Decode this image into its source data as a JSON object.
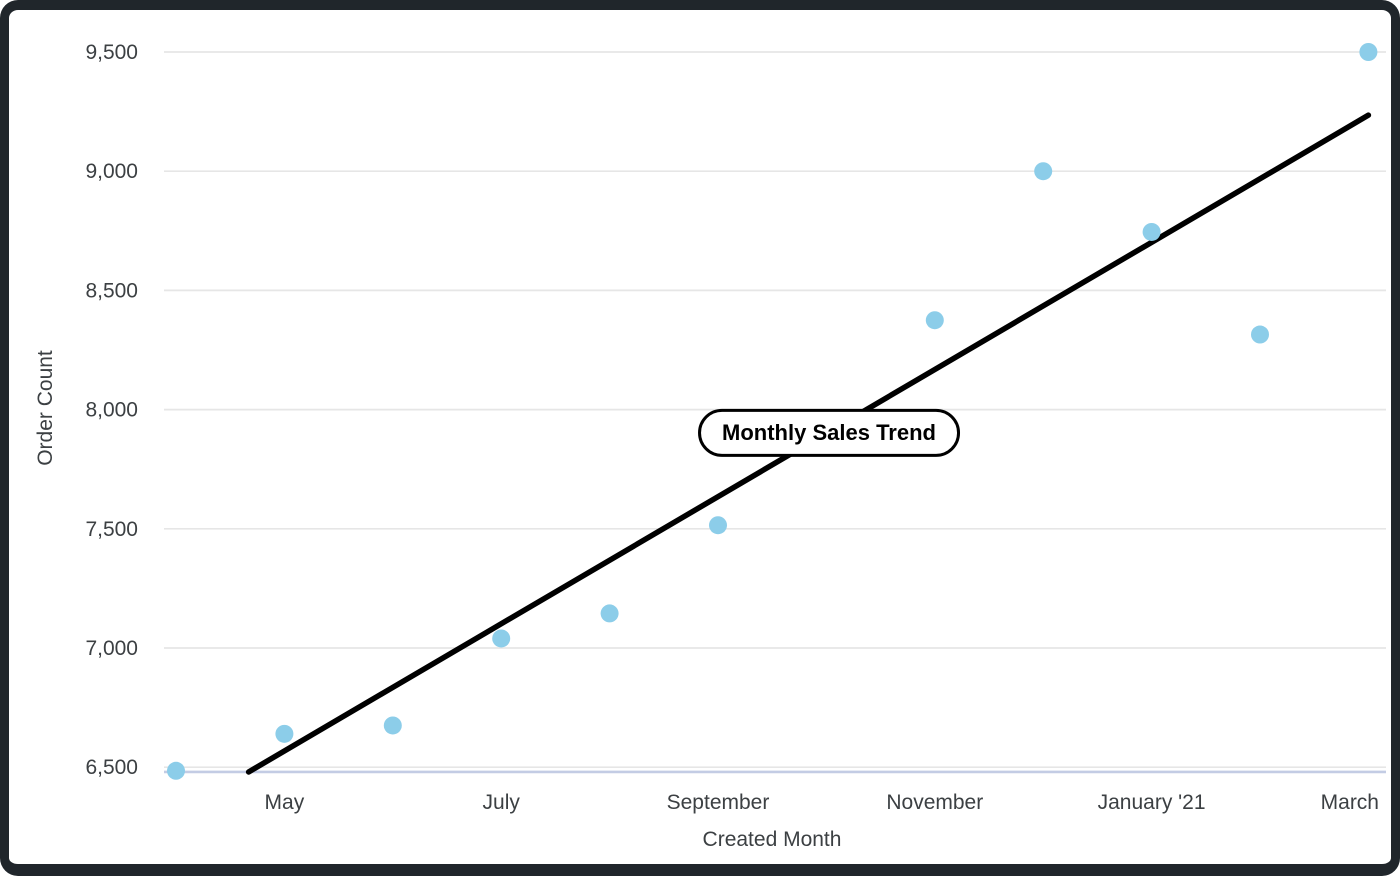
{
  "chart_data": {
    "type": "scatter",
    "title": "Monthly Sales Trend",
    "xlabel": "Created Month",
    "ylabel": "Order Count",
    "grid": "horizontal",
    "legend": "none",
    "ylim": [
      6480,
      9560
    ],
    "x_range_months": [
      "April",
      "March"
    ],
    "y_ticks": [
      {
        "label": "6,500",
        "value": 6500
      },
      {
        "label": "7,000",
        "value": 7000
      },
      {
        "label": "7,500",
        "value": 7500
      },
      {
        "label": "8,000",
        "value": 8000
      },
      {
        "label": "8,500",
        "value": 8500
      },
      {
        "label": "9,000",
        "value": 9000
      },
      {
        "label": "9,500",
        "value": 9500
      }
    ],
    "x_ticks": [
      {
        "label": "May",
        "month_index": 1
      },
      {
        "label": "July",
        "month_index": 3
      },
      {
        "label": "September",
        "month_index": 5
      },
      {
        "label": "November",
        "month_index": 7
      },
      {
        "label": "January '21",
        "month_index": 9
      },
      {
        "label": "March",
        "month_index": 11
      }
    ],
    "points": [
      {
        "month": "April",
        "month_index": 0,
        "value": 6485
      },
      {
        "month": "May",
        "month_index": 1,
        "value": 6640
      },
      {
        "month": "June",
        "month_index": 2,
        "value": 6675
      },
      {
        "month": "July",
        "month_index": 3,
        "value": 7040
      },
      {
        "month": "August",
        "month_index": 4,
        "value": 7145
      },
      {
        "month": "September",
        "month_index": 5,
        "value": 7515
      },
      {
        "month": "November",
        "month_index": 7,
        "value": 8375
      },
      {
        "month": "December",
        "month_index": 8,
        "value": 9000
      },
      {
        "month": "January '21",
        "month_index": 9,
        "value": 8745
      },
      {
        "month": "February",
        "month_index": 10,
        "value": 8315
      },
      {
        "month": "March",
        "month_index": 11,
        "value": 9500
      }
    ],
    "trend_line": {
      "start": {
        "month_index": 0.67,
        "value": 6480
      },
      "end": {
        "month_index": 11.0,
        "value": 9235
      }
    },
    "colors": {
      "point": "#8CCDE9",
      "trend": "#000000",
      "grid": "#E6E6E6",
      "axis_line": "#C3CCE4",
      "text": "#3C4043",
      "frame": "#20262B",
      "pill_bg": "#FFFFFF",
      "pill_border": "#000000"
    }
  }
}
